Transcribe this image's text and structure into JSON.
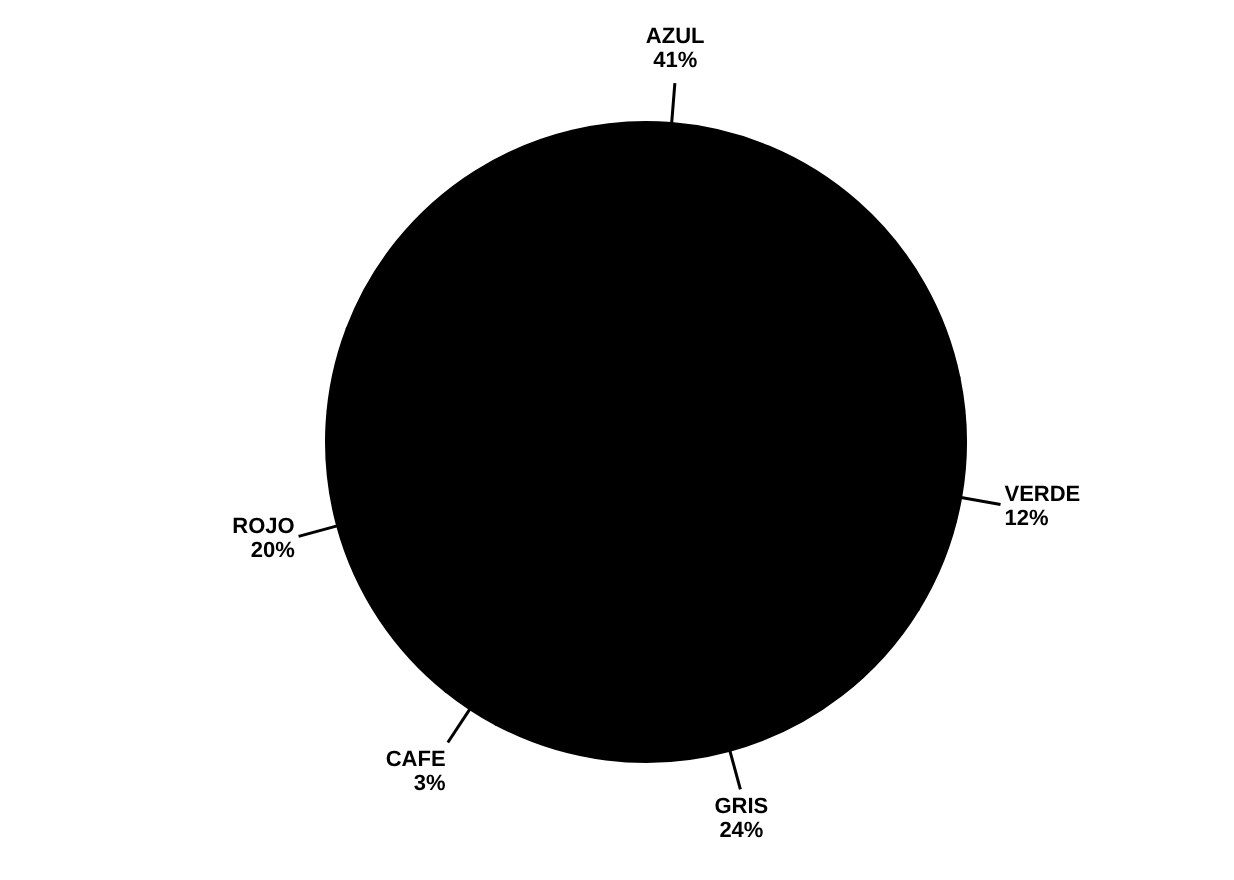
{
  "chart_data": {
    "type": "pie",
    "categories": [
      "VERDE",
      "AZUL",
      "ROJO",
      "CAFE",
      "GRIS"
    ],
    "values": [
      12,
      41,
      20,
      3,
      24
    ],
    "value_labels": [
      "12%",
      "41%",
      "20%",
      "3%",
      "24%"
    ],
    "colors": [
      "#000000",
      "#000000",
      "#000000",
      "#000000",
      "#000000"
    ],
    "legend": false
  }
}
